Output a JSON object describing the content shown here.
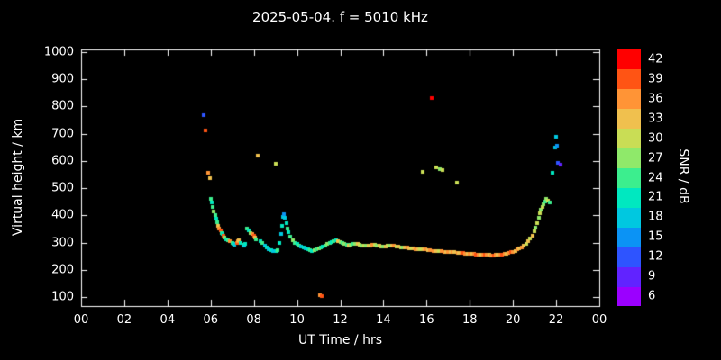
{
  "title": "2025-05-04. f = 5010 kHz",
  "chart_data": {
    "type": "scatter",
    "title": "2025-05-04. f = 5010 kHz",
    "xlabel": "UT Time / hrs",
    "ylabel": "Virtual height / km",
    "xlim": [
      0,
      24
    ],
    "ylim": [
      100,
      1000
    ],
    "grid": false,
    "background": "#000000",
    "frame_color": "#ffffff",
    "x_tick_labels": [
      "00",
      "02",
      "04",
      "06",
      "08",
      "10",
      "12",
      "14",
      "16",
      "18",
      "20",
      "22",
      "00"
    ],
    "y_tick_values": [
      100,
      200,
      300,
      400,
      500,
      600,
      700,
      800,
      900,
      1000
    ],
    "colorbar": {
      "label": "SNR / dB",
      "tick_values": [
        6,
        9,
        12,
        15,
        18,
        21,
        24,
        27,
        30,
        33,
        36,
        39,
        42
      ],
      "value_range": [
        4.5,
        43.5
      ],
      "band_colors": [
        "#9b00ff",
        "#6123ff",
        "#2e54ff",
        "#0b93f5",
        "#00c8e0",
        "#00e8c0",
        "#3cee8e",
        "#8fe96a",
        "#c9dd55",
        "#f0c04e",
        "#ff9436",
        "#ff5414",
        "#ff0000"
      ],
      "position": "right"
    },
    "points_format": [
      "ut_hours",
      "virtual_height_km",
      "snr_db"
    ],
    "points": [
      [
        5.68,
        770,
        12
      ],
      [
        5.74,
        712,
        39
      ],
      [
        5.9,
        556,
        36
      ],
      [
        5.96,
        538,
        33
      ],
      [
        6.0,
        462,
        24
      ],
      [
        6.05,
        446,
        21
      ],
      [
        6.1,
        430,
        24
      ],
      [
        6.15,
        415,
        27
      ],
      [
        6.2,
        400,
        24
      ],
      [
        6.25,
        388,
        21
      ],
      [
        6.3,
        375,
        24
      ],
      [
        6.35,
        362,
        33
      ],
      [
        6.4,
        352,
        36
      ],
      [
        6.45,
        344,
        39
      ],
      [
        6.5,
        336,
        24
      ],
      [
        6.55,
        330,
        21
      ],
      [
        6.6,
        324,
        39
      ],
      [
        6.65,
        318,
        27
      ],
      [
        6.7,
        313,
        21
      ],
      [
        6.8,
        308,
        24
      ],
      [
        6.9,
        304,
        36
      ],
      [
        7.0,
        300,
        24
      ],
      [
        7.05,
        296,
        21
      ],
      [
        7.1,
        293,
        18
      ],
      [
        7.2,
        298,
        39
      ],
      [
        7.25,
        305,
        36
      ],
      [
        7.3,
        310,
        33
      ],
      [
        7.4,
        298,
        21
      ],
      [
        7.5,
        292,
        24
      ],
      [
        7.55,
        288,
        18
      ],
      [
        7.6,
        296,
        21
      ],
      [
        7.7,
        352,
        24
      ],
      [
        7.75,
        345,
        21
      ],
      [
        7.85,
        336,
        27
      ],
      [
        7.95,
        330,
        36
      ],
      [
        8.0,
        326,
        39
      ],
      [
        8.05,
        318,
        33
      ],
      [
        8.1,
        312,
        24
      ],
      [
        8.2,
        620,
        33
      ],
      [
        8.3,
        306,
        21
      ],
      [
        8.4,
        298,
        24
      ],
      [
        8.5,
        290,
        18
      ],
      [
        8.6,
        283,
        21
      ],
      [
        8.7,
        277,
        18
      ],
      [
        8.8,
        272,
        21
      ],
      [
        8.9,
        268,
        18
      ],
      [
        9.0,
        590,
        30
      ],
      [
        9.05,
        268,
        21
      ],
      [
        9.1,
        272,
        24
      ],
      [
        9.2,
        300,
        21
      ],
      [
        9.25,
        330,
        18
      ],
      [
        9.3,
        360,
        21
      ],
      [
        9.35,
        395,
        18
      ],
      [
        9.4,
        405,
        15
      ],
      [
        9.45,
        390,
        18
      ],
      [
        9.5,
        370,
        21
      ],
      [
        9.55,
        352,
        24
      ],
      [
        9.6,
        338,
        21
      ],
      [
        9.7,
        322,
        24
      ],
      [
        9.8,
        310,
        27
      ],
      [
        9.9,
        300,
        24
      ],
      [
        10.0,
        295,
        21
      ],
      [
        10.1,
        290,
        24
      ],
      [
        10.2,
        286,
        18
      ],
      [
        10.3,
        282,
        21
      ],
      [
        10.4,
        278,
        18
      ],
      [
        10.5,
        274,
        21
      ],
      [
        10.6,
        272,
        24
      ],
      [
        10.7,
        270,
        21
      ],
      [
        10.8,
        272,
        27
      ],
      [
        10.9,
        275,
        24
      ],
      [
        11.0,
        278,
        27
      ],
      [
        11.05,
        105,
        36
      ],
      [
        11.15,
        103,
        39
      ],
      [
        11.1,
        282,
        24
      ],
      [
        11.2,
        286,
        21
      ],
      [
        11.3,
        290,
        24
      ],
      [
        11.4,
        294,
        27
      ],
      [
        11.5,
        298,
        24
      ],
      [
        11.6,
        302,
        21
      ],
      [
        11.7,
        306,
        24
      ],
      [
        11.8,
        308,
        21
      ],
      [
        11.9,
        306,
        33
      ],
      [
        12.0,
        302,
        27
      ],
      [
        12.1,
        298,
        24
      ],
      [
        12.2,
        295,
        27
      ],
      [
        12.3,
        292,
        24
      ],
      [
        12.4,
        290,
        33
      ],
      [
        12.5,
        292,
        27
      ],
      [
        12.6,
        294,
        24
      ],
      [
        12.7,
        296,
        27
      ],
      [
        12.8,
        295,
        33
      ],
      [
        12.9,
        292,
        30
      ],
      [
        13.0,
        290,
        27
      ],
      [
        13.1,
        288,
        30
      ],
      [
        13.2,
        287,
        27
      ],
      [
        13.3,
        288,
        33
      ],
      [
        13.4,
        290,
        30
      ],
      [
        13.5,
        292,
        36
      ],
      [
        13.6,
        291,
        30
      ],
      [
        13.7,
        289,
        27
      ],
      [
        13.8,
        287,
        33
      ],
      [
        13.9,
        286,
        30
      ],
      [
        14.0,
        285,
        27
      ],
      [
        14.1,
        286,
        33
      ],
      [
        14.2,
        288,
        30
      ],
      [
        14.3,
        290,
        27
      ],
      [
        14.4,
        289,
        33
      ],
      [
        14.5,
        287,
        36
      ],
      [
        14.6,
        285,
        30
      ],
      [
        14.7,
        284,
        33
      ],
      [
        14.8,
        283,
        30
      ],
      [
        14.9,
        282,
        27
      ],
      [
        15.0,
        282,
        33
      ],
      [
        15.1,
        281,
        36
      ],
      [
        15.2,
        280,
        33
      ],
      [
        15.3,
        279,
        30
      ],
      [
        15.4,
        278,
        33
      ],
      [
        15.5,
        277,
        36
      ],
      [
        15.6,
        276,
        33
      ],
      [
        15.7,
        276,
        30
      ],
      [
        15.8,
        560,
        30
      ],
      [
        15.85,
        275,
        33
      ],
      [
        15.95,
        274,
        36
      ],
      [
        16.05,
        273,
        33
      ],
      [
        16.15,
        272,
        36
      ],
      [
        16.25,
        830,
        42
      ],
      [
        16.3,
        270,
        36
      ],
      [
        16.45,
        575,
        30
      ],
      [
        16.4,
        269,
        33
      ],
      [
        16.55,
        269,
        30
      ],
      [
        16.6,
        570,
        27
      ],
      [
        16.7,
        268,
        36
      ],
      [
        16.75,
        565,
        30
      ],
      [
        16.8,
        267,
        36
      ],
      [
        16.9,
        266,
        33
      ],
      [
        17.0,
        266,
        36
      ],
      [
        17.1,
        265,
        33
      ],
      [
        17.2,
        264,
        36
      ],
      [
        17.3,
        264,
        33
      ],
      [
        17.4,
        520,
        30
      ],
      [
        17.45,
        263,
        36
      ],
      [
        17.5,
        262,
        33
      ],
      [
        17.6,
        262,
        36
      ],
      [
        17.7,
        261,
        39
      ],
      [
        17.8,
        260,
        36
      ],
      [
        17.9,
        260,
        33
      ],
      [
        18.0,
        259,
        36
      ],
      [
        18.1,
        258,
        33
      ],
      [
        18.2,
        258,
        36
      ],
      [
        18.3,
        257,
        39
      ],
      [
        18.4,
        256,
        36
      ],
      [
        18.5,
        256,
        33
      ],
      [
        18.6,
        255,
        36
      ],
      [
        18.7,
        255,
        39
      ],
      [
        18.8,
        254,
        36
      ],
      [
        18.9,
        254,
        33
      ],
      [
        19.0,
        253,
        36
      ],
      [
        19.1,
        253,
        39
      ],
      [
        19.2,
        254,
        36
      ],
      [
        19.3,
        255,
        33
      ],
      [
        19.4,
        256,
        36
      ],
      [
        19.5,
        257,
        39
      ],
      [
        19.6,
        258,
        36
      ],
      [
        19.7,
        260,
        33
      ],
      [
        19.8,
        262,
        36
      ],
      [
        19.9,
        264,
        39
      ],
      [
        20.0,
        267,
        36
      ],
      [
        20.1,
        270,
        33
      ],
      [
        20.2,
        274,
        36
      ],
      [
        20.3,
        278,
        33
      ],
      [
        20.4,
        283,
        36
      ],
      [
        20.5,
        289,
        33
      ],
      [
        20.6,
        296,
        30
      ],
      [
        20.7,
        304,
        33
      ],
      [
        20.8,
        314,
        30
      ],
      [
        20.9,
        326,
        33
      ],
      [
        21.0,
        340,
        30
      ],
      [
        21.05,
        355,
        27
      ],
      [
        21.1,
        372,
        30
      ],
      [
        21.2,
        392,
        27
      ],
      [
        21.25,
        408,
        30
      ],
      [
        21.3,
        420,
        27
      ],
      [
        21.35,
        432,
        30
      ],
      [
        21.4,
        442,
        27
      ],
      [
        21.5,
        452,
        24
      ],
      [
        21.55,
        462,
        27
      ],
      [
        21.6,
        455,
        30
      ],
      [
        21.7,
        448,
        24
      ],
      [
        21.85,
        556,
        21
      ],
      [
        21.95,
        650,
        18
      ],
      [
        22.0,
        688,
        18
      ],
      [
        22.05,
        655,
        15
      ],
      [
        22.1,
        592,
        12
      ],
      [
        22.2,
        586,
        9
      ]
    ]
  }
}
